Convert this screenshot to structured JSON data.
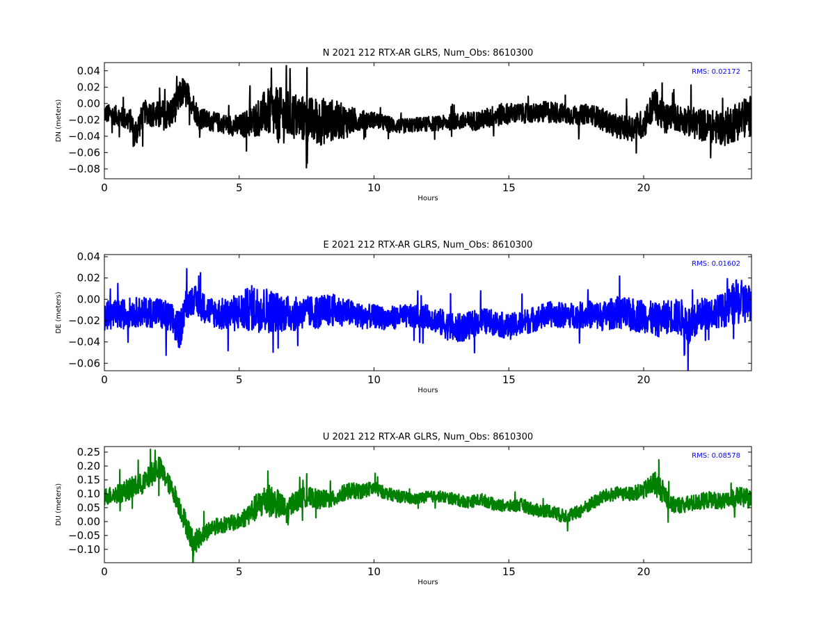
{
  "chart_data": [
    {
      "type": "line",
      "title": "N 2021 212 RTX-AR  GLRS, Num_Obs: 8610300",
      "xlabel": "Hours",
      "ylabel": "DN (meters)",
      "xlim": [
        0,
        24
      ],
      "ylim": [
        -0.092,
        0.05
      ],
      "xticks": [
        0,
        5,
        10,
        15,
        20
      ],
      "xtick_labels": [
        "0",
        "5",
        "10",
        "15",
        "20"
      ],
      "yticks": [
        0.04,
        0.02,
        0.0,
        -0.02,
        -0.04,
        -0.06,
        -0.08
      ],
      "ytick_labels": [
        "0.04",
        "0.02",
        "0.00",
        "−0.02",
        "−0.04",
        "−0.06",
        "−0.08"
      ],
      "annotation": "RMS:  0.02172",
      "color": "#000000",
      "grid": false,
      "series": [
        {
          "x": [
            0,
            0.5,
            1.0,
            1.1,
            1.5,
            2.0,
            2.5,
            2.9,
            3.2,
            3.5,
            4.0,
            4.5,
            5.0,
            5.5,
            6.0,
            6.5,
            7.0,
            7.5,
            8.0,
            8.5,
            9.0,
            9.5,
            10.0,
            10.5,
            11.0,
            11.5,
            12.0,
            12.5,
            13.0,
            13.5,
            14.0,
            14.5,
            15.0,
            15.5,
            16.0,
            16.5,
            17.0,
            17.5,
            18.0,
            18.5,
            19.0,
            19.5,
            20.0,
            20.4,
            20.8,
            21.0,
            21.5,
            22.0,
            22.5,
            23.0,
            23.5,
            24.0
          ],
          "center": [
            -0.012,
            -0.015,
            -0.022,
            -0.04,
            -0.01,
            -0.015,
            -0.012,
            0.015,
            0.005,
            -0.018,
            -0.022,
            -0.025,
            -0.028,
            -0.022,
            -0.01,
            -0.015,
            -0.015,
            -0.02,
            -0.022,
            -0.02,
            -0.022,
            -0.02,
            -0.02,
            -0.025,
            -0.028,
            -0.026,
            -0.025,
            -0.024,
            -0.022,
            -0.022,
            -0.02,
            -0.015,
            -0.012,
            -0.012,
            -0.012,
            -0.01,
            -0.012,
            -0.015,
            -0.012,
            -0.02,
            -0.028,
            -0.03,
            -0.025,
            0.0,
            -0.02,
            -0.015,
            -0.02,
            -0.025,
            -0.028,
            -0.03,
            -0.02,
            -0.015
          ],
          "amplitude": [
            0.012,
            0.012,
            0.015,
            0.02,
            0.014,
            0.018,
            0.02,
            0.018,
            0.016,
            0.014,
            0.012,
            0.012,
            0.014,
            0.02,
            0.028,
            0.035,
            0.03,
            0.028,
            0.03,
            0.025,
            0.02,
            0.012,
            0.01,
            0.01,
            0.009,
            0.009,
            0.009,
            0.009,
            0.01,
            0.012,
            0.012,
            0.014,
            0.013,
            0.012,
            0.012,
            0.014,
            0.012,
            0.012,
            0.012,
            0.014,
            0.014,
            0.016,
            0.018,
            0.02,
            0.02,
            0.016,
            0.018,
            0.02,
            0.02,
            0.022,
            0.025,
            0.025
          ]
        }
      ]
    },
    {
      "type": "line",
      "title": "E 2021 212 RTX-AR  GLRS, Num_Obs: 8610300",
      "xlabel": "Hours",
      "ylabel": "DE (meters)",
      "xlim": [
        0,
        24
      ],
      "ylim": [
        -0.067,
        0.042
      ],
      "xticks": [
        0,
        5,
        10,
        15,
        20
      ],
      "xtick_labels": [
        "0",
        "5",
        "10",
        "15",
        "20"
      ],
      "yticks": [
        0.04,
        0.02,
        0.0,
        -0.02,
        -0.04,
        -0.06
      ],
      "ytick_labels": [
        "0.04",
        "0.02",
        "0.00",
        "−0.02",
        "−0.04",
        "−0.06"
      ],
      "annotation": "RMS:  0.01602",
      "color": "#0000ff",
      "grid": false,
      "series": [
        {
          "x": [
            0,
            0.5,
            1.0,
            1.5,
            2.0,
            2.5,
            2.8,
            3.0,
            3.3,
            3.7,
            4.0,
            4.5,
            5.0,
            5.5,
            6.0,
            6.5,
            7.0,
            7.5,
            8.0,
            8.5,
            9.0,
            9.5,
            10.0,
            10.5,
            11.0,
            11.5,
            12.0,
            12.5,
            13.0,
            13.5,
            14.0,
            14.5,
            15.0,
            15.5,
            16.0,
            16.5,
            17.0,
            17.5,
            18.0,
            18.5,
            19.0,
            19.5,
            20.0,
            20.5,
            21.0,
            21.5,
            21.8,
            22.0,
            22.5,
            23.0,
            23.5,
            24.0
          ],
          "center": [
            -0.015,
            -0.015,
            -0.012,
            -0.012,
            -0.012,
            -0.02,
            -0.03,
            -0.005,
            0.0,
            -0.008,
            -0.012,
            -0.015,
            -0.012,
            -0.008,
            -0.01,
            -0.012,
            -0.014,
            -0.012,
            -0.012,
            -0.01,
            -0.012,
            -0.016,
            -0.016,
            -0.018,
            -0.016,
            -0.016,
            -0.016,
            -0.022,
            -0.028,
            -0.025,
            -0.02,
            -0.022,
            -0.026,
            -0.022,
            -0.018,
            -0.014,
            -0.015,
            -0.015,
            -0.014,
            -0.016,
            -0.012,
            -0.015,
            -0.015,
            -0.02,
            -0.015,
            -0.018,
            -0.03,
            -0.015,
            -0.012,
            -0.01,
            -0.002,
            -0.005
          ],
          "amplitude": [
            0.014,
            0.014,
            0.014,
            0.014,
            0.015,
            0.016,
            0.018,
            0.014,
            0.014,
            0.014,
            0.014,
            0.016,
            0.018,
            0.022,
            0.022,
            0.018,
            0.016,
            0.015,
            0.016,
            0.015,
            0.013,
            0.012,
            0.011,
            0.011,
            0.011,
            0.011,
            0.011,
            0.013,
            0.014,
            0.013,
            0.012,
            0.012,
            0.012,
            0.012,
            0.012,
            0.012,
            0.012,
            0.012,
            0.013,
            0.014,
            0.015,
            0.016,
            0.016,
            0.016,
            0.016,
            0.018,
            0.022,
            0.016,
            0.015,
            0.016,
            0.022,
            0.018
          ]
        }
      ]
    },
    {
      "type": "line",
      "title": "U 2021 212 RTX-AR  GLRS, Num_Obs: 8610300",
      "xlabel": "Hours",
      "ylabel": "DU (meters)",
      "xlim": [
        0,
        24
      ],
      "ylim": [
        -0.148,
        0.27
      ],
      "xticks": [
        0,
        5,
        10,
        15,
        20
      ],
      "xtick_labels": [
        "0",
        "5",
        "10",
        "15",
        "20"
      ],
      "yticks": [
        0.25,
        0.2,
        0.15,
        0.1,
        0.05,
        0.0,
        -0.05,
        -0.1
      ],
      "ytick_labels": [
        "0.25",
        "0.20",
        "0.15",
        "0.10",
        "0.05",
        "0.00",
        "−0.05",
        "−0.10"
      ],
      "annotation": "RMS:  0.08578",
      "color": "#008000",
      "grid": false,
      "series": [
        {
          "x": [
            0,
            0.5,
            1.0,
            1.5,
            2.0,
            2.3,
            2.6,
            3.0,
            3.3,
            3.6,
            4.0,
            4.5,
            5.0,
            5.5,
            6.0,
            6.5,
            6.8,
            7.0,
            7.5,
            8.0,
            8.5,
            9.0,
            9.5,
            10.0,
            10.5,
            11.0,
            11.5,
            12.0,
            12.5,
            13.0,
            13.5,
            14.0,
            14.5,
            15.0,
            15.5,
            16.0,
            16.5,
            17.0,
            17.5,
            18.0,
            18.5,
            19.0,
            19.5,
            20.0,
            20.4,
            20.8,
            21.0,
            21.5,
            22.0,
            22.5,
            23.0,
            23.5,
            24.0
          ],
          "center": [
            0.09,
            0.1,
            0.12,
            0.14,
            0.2,
            0.15,
            0.1,
            0.0,
            -0.08,
            -0.05,
            -0.02,
            -0.01,
            0.0,
            0.04,
            0.08,
            0.06,
            0.03,
            0.07,
            0.09,
            0.08,
            0.08,
            0.11,
            0.11,
            0.12,
            0.1,
            0.09,
            0.08,
            0.09,
            0.09,
            0.08,
            0.07,
            0.08,
            0.06,
            0.055,
            0.06,
            0.04,
            0.04,
            0.02,
            0.03,
            0.06,
            0.09,
            0.1,
            0.1,
            0.11,
            0.14,
            0.1,
            0.06,
            0.06,
            0.07,
            0.08,
            0.07,
            0.09,
            0.08
          ],
          "amplitude": [
            0.03,
            0.035,
            0.04,
            0.04,
            0.045,
            0.035,
            0.035,
            0.04,
            0.045,
            0.035,
            0.03,
            0.028,
            0.03,
            0.045,
            0.06,
            0.05,
            0.045,
            0.04,
            0.035,
            0.035,
            0.03,
            0.03,
            0.028,
            0.025,
            0.022,
            0.022,
            0.02,
            0.02,
            0.02,
            0.022,
            0.022,
            0.022,
            0.022,
            0.022,
            0.024,
            0.024,
            0.024,
            0.025,
            0.025,
            0.025,
            0.025,
            0.025,
            0.025,
            0.03,
            0.045,
            0.04,
            0.03,
            0.03,
            0.03,
            0.03,
            0.03,
            0.035,
            0.035
          ]
        }
      ]
    }
  ]
}
